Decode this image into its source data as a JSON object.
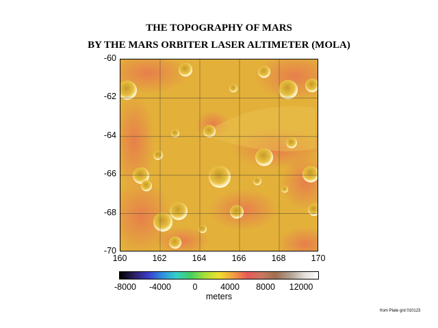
{
  "title": {
    "line1": "THE TOPOGRAPHY OF MARS",
    "line2": "BY THE MARS ORBITER LASER ALTIMETER (MOLA)"
  },
  "map": {
    "lat_labels": [
      "-60",
      "-62",
      "-64",
      "-66",
      "-68",
      "-70"
    ],
    "lon_labels": [
      "160",
      "162",
      "164",
      "166",
      "168",
      "170"
    ],
    "lat_range": [
      -70,
      -60
    ],
    "lon_range": [
      160,
      170
    ],
    "terrain_colors": {
      "mid": "#e3b03a",
      "high": "#e8764f",
      "low": "#d89a30",
      "peak": "#f0f0f0"
    }
  },
  "colorbar": {
    "labels": [
      "-8000",
      "-4000",
      "0",
      "4000",
      "8000",
      "12000"
    ],
    "values": [
      -8000,
      -4000,
      0,
      4000,
      8000,
      12000
    ],
    "range": [
      -9000,
      13000
    ],
    "unit": "meters",
    "stops": [
      "#000000",
      "#2a1f5e",
      "#3b3cc8",
      "#2f8fe0",
      "#35d0c8",
      "#44d060",
      "#a8e03a",
      "#f0e030",
      "#f0a040",
      "#e85a5a",
      "#c87860",
      "#a07050",
      "#b0a090",
      "#e0dcd8",
      "#ffffff"
    ]
  },
  "credit": "from Plate grd 010123"
}
